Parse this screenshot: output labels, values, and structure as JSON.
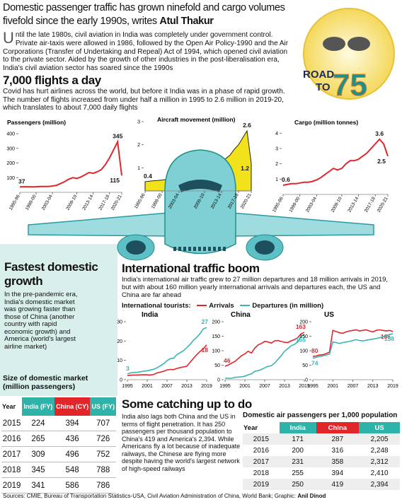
{
  "header": {
    "title": "Domestic passenger traffic has grown ninefold and cargo volumes fivefold since the early 1990s, writes",
    "byline": "Atul Thakur",
    "intro": "Until the late 1980s, civil aviation in India was completely under government control. Private air-taxis were allowed in 1986, followed by the Open Air Policy-1990 and the Air Corporations (Transfer of Undertaking and Repeal) Act of 1994, which opened civil aviation to the private sector. Aided by the growth of other industries in the post-liberalisation era, India's civil aviation sector has soared since the 1990s"
  },
  "badge": {
    "line1": "ROAD",
    "line2": "TO",
    "number": "75"
  },
  "flights": {
    "heading": "7,000 flights a day",
    "text": "Covid has hurt airlines across the world, but before it India was in a phase of rapid growth. The number of flights increased from under half a million in 1995 to 2.6 million in 2019-20, which translates to about 7,000 daily flights"
  },
  "fastest": {
    "heading": "Fastest domestic growth",
    "text": "In the pre-pandemic era, India's domestic market was growing faster than those of China (another country with rapid economic growth) and America (world's largest airline market)",
    "table_title": "Size of domestic market (million passengers)",
    "table": {
      "header": [
        "Year",
        "India (FY)",
        "China (CY)",
        "US (FY)"
      ],
      "rows": [
        [
          2015,
          224,
          394,
          707
        ],
        [
          2016,
          265,
          436,
          726
        ],
        [
          2017,
          309,
          496,
          752
        ],
        [
          2018,
          345,
          548,
          788
        ],
        [
          2019,
          341,
          586,
          786
        ]
      ]
    }
  },
  "intl": {
    "heading": "International traffic boom",
    "text": "India's international air traffic grew to 27 million departures and 18 million arrivals in 2019, but with about 160 million yearly international arrivals and departures each, the US and China are far ahead",
    "legend_title": "International tourists:"
  },
  "catching": {
    "heading": "Some catching up to do",
    "text": "India also lags both China and the US in terms of flight penetration. It has 250 passengers per thousand population to China's 419 and America's 2,394. While Americans fly a lot because of inadequate railways, the Chinese are flying more despite having the world's largest network of high-speed railways",
    "table_title": "Domestic air passengers per 1,000 population",
    "table": {
      "header": [
        "Year",
        "India",
        "China",
        "US"
      ],
      "rows": [
        [
          2015,
          171,
          287,
          "2,205"
        ],
        [
          2016,
          200,
          316,
          "2,248"
        ],
        [
          2017,
          231,
          358,
          "2,312"
        ],
        [
          2018,
          255,
          394,
          "2,410"
        ],
        [
          2019,
          250,
          419,
          "2,394"
        ]
      ]
    }
  },
  "sources": {
    "text": "Sources: CMIE, Bureau of Transportation Statistics-USA, Civil Aviation Administration of China, World Bank; Graphic:",
    "graphic": "Anil Dinod"
  },
  "chart_data": [
    {
      "type": "line",
      "title": "Passengers (million)",
      "categories": [
        "1995-96",
        null,
        null,
        null,
        "1999-00",
        null,
        null,
        null,
        "2003-04",
        null,
        null,
        null,
        null,
        null,
        "2009-10",
        null,
        null,
        null,
        "2013-14",
        null,
        null,
        null,
        "2017-18",
        null,
        null,
        "2020-21"
      ],
      "ylim": [
        0,
        420
      ],
      "yticks": [
        100,
        200,
        300,
        400
      ],
      "series": [
        {
          "color": "#e0262b",
          "values": [
            37,
            38,
            38,
            37,
            38,
            40,
            40,
            40,
            43,
            48,
            60,
            73,
            90,
            100,
            95,
            105,
            120,
            135,
            130,
            140,
            155,
            190,
            235,
            290,
            345,
            115
          ],
          "value_labels": [
            "37",
            null,
            null,
            null,
            null,
            null,
            null,
            null,
            null,
            null,
            null,
            null,
            null,
            null,
            null,
            null,
            null,
            null,
            null,
            null,
            null,
            null,
            null,
            null,
            "345",
            "115"
          ]
        }
      ]
    },
    {
      "type": "area",
      "title": "Aircraft movement (million)",
      "categories": [
        "1995-96",
        null,
        null,
        null,
        "1999-00",
        null,
        null,
        null,
        "2003-04",
        null,
        null,
        null,
        null,
        null,
        "2009-10",
        null,
        null,
        null,
        "2013-14",
        null,
        null,
        null,
        "2017-18",
        null,
        null,
        "2020-21"
      ],
      "ylim": [
        0,
        3
      ],
      "yticks": [
        1,
        2,
        3
      ],
      "series": [
        {
          "color": "#f2e21c",
          "values": [
            0.4,
            0.42,
            0.44,
            0.45,
            0.47,
            0.5,
            0.5,
            0.52,
            0.55,
            0.62,
            0.7,
            0.85,
            0.95,
            1.0,
            1.0,
            1.1,
            1.2,
            1.25,
            1.3,
            1.4,
            1.55,
            1.8,
            2.0,
            2.3,
            2.6,
            1.2
          ],
          "value_labels": [
            "0.4",
            null,
            null,
            null,
            null,
            null,
            null,
            null,
            null,
            null,
            null,
            null,
            null,
            null,
            null,
            null,
            null,
            null,
            null,
            null,
            null,
            null,
            null,
            null,
            "2.6",
            "1.2"
          ]
        }
      ]
    },
    {
      "type": "line",
      "title": "Cargo (million tonnes)",
      "categories": [
        "1995-96",
        null,
        null,
        null,
        "1999-00",
        null,
        null,
        null,
        "2003-04",
        null,
        null,
        null,
        null,
        null,
        "2009-10",
        null,
        null,
        null,
        "2013-14",
        null,
        null,
        null,
        "2017-18",
        null,
        null,
        "2020-21"
      ],
      "ylim": [
        0,
        4.2
      ],
      "yticks": [
        1,
        2,
        3,
        4
      ],
      "series": [
        {
          "color": "#e0262b",
          "values": [
            0.6,
            0.65,
            0.7,
            0.7,
            0.75,
            0.8,
            0.8,
            0.85,
            0.95,
            1.1,
            1.3,
            1.5,
            1.7,
            1.6,
            1.7,
            2.0,
            2.2,
            2.2,
            2.3,
            2.5,
            2.7,
            3.0,
            3.3,
            3.6,
            3.3,
            2.5
          ],
          "value_labels": [
            "0.6",
            null,
            null,
            null,
            null,
            null,
            null,
            null,
            null,
            null,
            null,
            null,
            null,
            null,
            null,
            null,
            null,
            null,
            null,
            null,
            null,
            null,
            null,
            "3.6",
            null,
            "2.5"
          ]
        }
      ]
    },
    {
      "type": "line",
      "title": "India",
      "x": [
        1995,
        1996,
        1997,
        1998,
        1999,
        2000,
        2001,
        2002,
        2003,
        2004,
        2005,
        2006,
        2007,
        2008,
        2009,
        2010,
        2011,
        2012,
        2013,
        2014,
        2015,
        2016,
        2017,
        2018,
        2019
      ],
      "xlim": [
        1995,
        2019
      ],
      "xticks": [
        1995,
        2001,
        2007,
        2013,
        2019
      ],
      "ylim": [
        0,
        30
      ],
      "yticks": [
        0,
        10,
        20,
        30
      ],
      "series": [
        {
          "name": "Arrivals",
          "color": "#e0262b",
          "values": [
            2.1,
            2.3,
            2.4,
            2.4,
            2.5,
            2.6,
            2.5,
            2.4,
            2.7,
            3.5,
            3.9,
            4.4,
            5.1,
            5.3,
            5.2,
            5.8,
            6.3,
            6.6,
            7.0,
            9.0,
            11.0,
            13.0,
            14.6,
            16.0,
            18
          ],
          "value_labels": [
            null,
            null,
            null,
            null,
            null,
            null,
            null,
            null,
            null,
            null,
            null,
            null,
            null,
            null,
            null,
            null,
            null,
            null,
            null,
            null,
            null,
            null,
            null,
            null,
            "18"
          ]
        },
        {
          "name": "Departures (in million)",
          "color": "#3ab5b0",
          "values": [
            3,
            3.5,
            3.7,
            3.8,
            4.1,
            4.4,
            4.6,
            5.0,
            5.4,
            6.2,
            7.2,
            8.3,
            9.8,
            10.9,
            11.1,
            13.0,
            14.0,
            15.0,
            16.6,
            18.3,
            20.4,
            21.9,
            23.9,
            26.3,
            27
          ],
          "value_labels": [
            "3",
            null,
            null,
            null,
            null,
            null,
            null,
            null,
            null,
            null,
            null,
            null,
            null,
            null,
            null,
            null,
            null,
            null,
            null,
            null,
            null,
            null,
            null,
            null,
            "27"
          ]
        }
      ]
    },
    {
      "type": "line",
      "title": "China",
      "x": [
        1995,
        1996,
        1997,
        1998,
        1999,
        2000,
        2001,
        2002,
        2003,
        2004,
        2005,
        2006,
        2007,
        2008,
        2009,
        2010,
        2011,
        2012,
        2013,
        2014,
        2015,
        2016,
        2017,
        2018,
        2019
      ],
      "xlim": [
        1995,
        2019
      ],
      "xticks": [
        1995,
        2001,
        2007,
        2013,
        2019
      ],
      "ylim": [
        0,
        200
      ],
      "yticks": [
        0,
        50,
        100,
        150,
        200
      ],
      "series": [
        {
          "color": "#e0262b",
          "values": [
            46,
            51,
            57,
            63,
            73,
            83,
            89,
            98,
            92,
            109,
            120,
            125,
            132,
            130,
            126,
            134,
            135,
            132,
            129,
            128,
            134,
            138,
            145,
            158,
            163
          ],
          "value_labels": [
            "46",
            null,
            null,
            null,
            null,
            null,
            null,
            null,
            null,
            null,
            null,
            null,
            null,
            null,
            null,
            null,
            null,
            null,
            null,
            null,
            null,
            null,
            null,
            null,
            "163"
          ]
        },
        {
          "color": "#3ab5b0",
          "values": [
            5,
            5,
            5,
            8,
            9,
            10,
            12,
            17,
            20,
            29,
            31,
            35,
            41,
            46,
            48,
            57,
            70,
            83,
            98,
            107,
            117,
            122,
            130,
            150,
            155
          ],
          "value_labels": [
            null,
            null,
            null,
            null,
            null,
            null,
            null,
            null,
            null,
            null,
            null,
            null,
            null,
            null,
            null,
            null,
            null,
            null,
            null,
            null,
            null,
            null,
            null,
            null,
            "155"
          ]
        }
      ]
    },
    {
      "type": "line",
      "title": "US",
      "x": [
        1995,
        1996,
        1997,
        1998,
        1999,
        2000,
        2001,
        2002,
        2003,
        2004,
        2005,
        2006,
        2007,
        2008,
        2009,
        2010,
        2011,
        2012,
        2013,
        2014,
        2015,
        2016,
        2017,
        2018,
        2019
      ],
      "xlim": [
        1995,
        2019
      ],
      "xticks": [
        1995,
        2001,
        2007,
        2013,
        2019
      ],
      "ylim": [
        0,
        200
      ],
      "yticks": [
        0,
        50,
        100,
        150,
        200
      ],
      "series": [
        {
          "color": "#e0262b",
          "values": [
            80,
            82,
            85,
            86,
            90,
            95,
            170,
            166,
            162,
            160,
            165,
            168,
            170,
            172,
            168,
            170,
            172,
            168,
            165,
            170,
            172,
            170,
            168,
            170,
            166
          ],
          "value_labels": [
            "80",
            null,
            null,
            null,
            null,
            null,
            null,
            null,
            null,
            null,
            null,
            null,
            null,
            null,
            null,
            null,
            null,
            null,
            null,
            null,
            null,
            null,
            null,
            null,
            "166"
          ]
        },
        {
          "color": "#3ab5b0",
          "values": [
            74,
            77,
            80,
            82,
            85,
            88,
            130,
            128,
            125,
            128,
            130,
            132,
            135,
            138,
            135,
            134,
            136,
            138,
            140,
            142,
            145,
            148,
            152,
            156,
            158
          ],
          "value_labels": [
            "74",
            null,
            null,
            null,
            null,
            null,
            null,
            null,
            null,
            null,
            null,
            null,
            null,
            null,
            null,
            null,
            null,
            null,
            null,
            null,
            null,
            null,
            null,
            null,
            "158"
          ]
        }
      ]
    }
  ]
}
